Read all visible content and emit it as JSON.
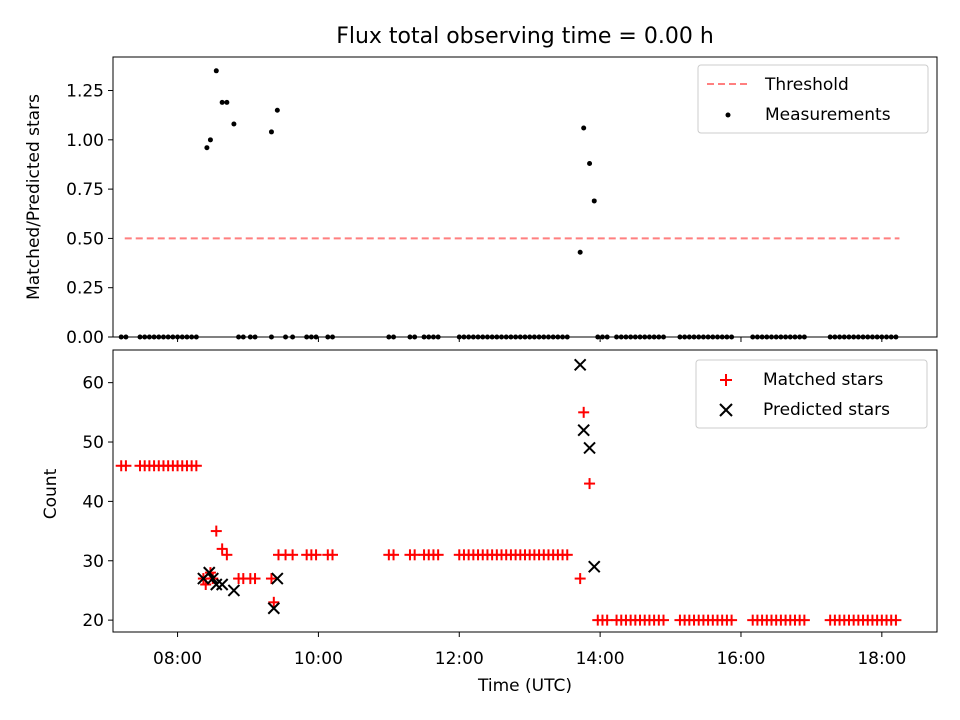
{
  "title": "Flux total observing time = 0.00 h",
  "xlabel": "Time (UTC)",
  "x_ticks": [
    "08:00",
    "10:00",
    "12:00",
    "14:00",
    "16:00",
    "18:00"
  ],
  "colors": {
    "threshold": "#ff7f7f",
    "measurements": "#000000",
    "matched": "#ff0000",
    "predicted": "#000000"
  },
  "chart_data": [
    {
      "type": "scatter",
      "ylabel": "Matched/Predicted stars",
      "xlim": [
        "07:05",
        "18:47"
      ],
      "ylim": [
        0,
        1.42
      ],
      "y_ticks": [
        "0.00",
        "0.25",
        "0.50",
        "0.75",
        "1.00",
        "1.25"
      ],
      "legend": "top-right",
      "threshold": {
        "name": "Threshold",
        "y": 0.5,
        "x_range": [
          "07:15",
          "18:15"
        ]
      },
      "series": [
        {
          "name": "Measurements",
          "points": [
            [
              "08:25",
              0.96
            ],
            [
              "08:28",
              1.0
            ],
            [
              "08:33",
              1.35
            ],
            [
              "08:38",
              1.19
            ],
            [
              "08:42",
              1.19
            ],
            [
              "08:48",
              1.08
            ],
            [
              "09:20",
              1.04
            ],
            [
              "09:25",
              1.15
            ],
            [
              "13:43",
              0.43
            ],
            [
              "13:46",
              1.06
            ],
            [
              "13:51",
              0.88
            ],
            [
              "13:55",
              0.69
            ],
            [
              "07:12",
              0
            ],
            [
              "07:16",
              0
            ],
            [
              "07:28",
              0
            ],
            [
              "07:32",
              0
            ],
            [
              "07:36",
              0
            ],
            [
              "07:40",
              0
            ],
            [
              "07:44",
              0
            ],
            [
              "07:48",
              0
            ],
            [
              "07:52",
              0
            ],
            [
              "07:56",
              0
            ],
            [
              "08:00",
              0
            ],
            [
              "08:04",
              0
            ],
            [
              "08:08",
              0
            ],
            [
              "08:12",
              0
            ],
            [
              "08:16",
              0
            ],
            [
              "08:52",
              0
            ],
            [
              "08:56",
              0
            ],
            [
              "09:02",
              0
            ],
            [
              "09:06",
              0
            ],
            [
              "09:20",
              0
            ],
            [
              "09:32",
              0
            ],
            [
              "09:38",
              0
            ],
            [
              "09:50",
              0
            ],
            [
              "09:54",
              0
            ],
            [
              "09:58",
              0
            ],
            [
              "10:08",
              0
            ],
            [
              "10:12",
              0
            ],
            [
              "11:00",
              0
            ],
            [
              "11:04",
              0
            ],
            [
              "11:18",
              0
            ],
            [
              "11:22",
              0
            ],
            [
              "11:30",
              0
            ],
            [
              "11:34",
              0
            ],
            [
              "11:38",
              0
            ],
            [
              "11:42",
              0
            ],
            [
              "12:00",
              0
            ],
            [
              "12:04",
              0
            ],
            [
              "12:08",
              0
            ],
            [
              "12:12",
              0
            ],
            [
              "12:16",
              0
            ],
            [
              "12:20",
              0
            ],
            [
              "12:24",
              0
            ],
            [
              "12:28",
              0
            ],
            [
              "12:32",
              0
            ],
            [
              "12:36",
              0
            ],
            [
              "12:40",
              0
            ],
            [
              "12:44",
              0
            ],
            [
              "12:48",
              0
            ],
            [
              "12:52",
              0
            ],
            [
              "12:56",
              0
            ],
            [
              "13:00",
              0
            ],
            [
              "13:04",
              0
            ],
            [
              "13:08",
              0
            ],
            [
              "13:12",
              0
            ],
            [
              "13:16",
              0
            ],
            [
              "13:20",
              0
            ],
            [
              "13:24",
              0
            ],
            [
              "13:28",
              0
            ],
            [
              "13:32",
              0
            ],
            [
              "13:58",
              0
            ],
            [
              "14:02",
              0
            ],
            [
              "14:06",
              0
            ],
            [
              "14:14",
              0
            ],
            [
              "14:18",
              0
            ],
            [
              "14:22",
              0
            ],
            [
              "14:26",
              0
            ],
            [
              "14:30",
              0
            ],
            [
              "14:34",
              0
            ],
            [
              "14:38",
              0
            ],
            [
              "14:42",
              0
            ],
            [
              "14:46",
              0
            ],
            [
              "14:50",
              0
            ],
            [
              "14:54",
              0
            ],
            [
              "15:08",
              0
            ],
            [
              "15:12",
              0
            ],
            [
              "15:16",
              0
            ],
            [
              "15:20",
              0
            ],
            [
              "15:24",
              0
            ],
            [
              "15:28",
              0
            ],
            [
              "15:32",
              0
            ],
            [
              "15:36",
              0
            ],
            [
              "15:40",
              0
            ],
            [
              "15:44",
              0
            ],
            [
              "15:48",
              0
            ],
            [
              "15:52",
              0
            ],
            [
              "16:10",
              0
            ],
            [
              "16:14",
              0
            ],
            [
              "16:18",
              0
            ],
            [
              "16:22",
              0
            ],
            [
              "16:26",
              0
            ],
            [
              "16:30",
              0
            ],
            [
              "16:34",
              0
            ],
            [
              "16:38",
              0
            ],
            [
              "16:42",
              0
            ],
            [
              "16:46",
              0
            ],
            [
              "16:50",
              0
            ],
            [
              "16:54",
              0
            ],
            [
              "17:16",
              0
            ],
            [
              "17:20",
              0
            ],
            [
              "17:24",
              0
            ],
            [
              "17:28",
              0
            ],
            [
              "17:32",
              0
            ],
            [
              "17:36",
              0
            ],
            [
              "17:40",
              0
            ],
            [
              "17:44",
              0
            ],
            [
              "17:48",
              0
            ],
            [
              "17:52",
              0
            ],
            [
              "17:56",
              0
            ],
            [
              "18:00",
              0
            ],
            [
              "18:04",
              0
            ],
            [
              "18:08",
              0
            ],
            [
              "18:12",
              0
            ]
          ]
        }
      ]
    },
    {
      "type": "scatter",
      "ylabel": "Count",
      "xlim": [
        "07:05",
        "18:47"
      ],
      "ylim": [
        18,
        65.5
      ],
      "y_ticks": [
        "20",
        "30",
        "40",
        "50",
        "60"
      ],
      "legend": "top-right",
      "series": [
        {
          "name": "Matched stars",
          "marker": "+",
          "points": [
            [
              "07:12",
              46
            ],
            [
              "07:16",
              46
            ],
            [
              "07:28",
              46
            ],
            [
              "07:32",
              46
            ],
            [
              "07:36",
              46
            ],
            [
              "07:40",
              46
            ],
            [
              "07:44",
              46
            ],
            [
              "07:48",
              46
            ],
            [
              "07:52",
              46
            ],
            [
              "07:56",
              46
            ],
            [
              "08:00",
              46
            ],
            [
              "08:04",
              46
            ],
            [
              "08:08",
              46
            ],
            [
              "08:12",
              46
            ],
            [
              "08:16",
              46
            ],
            [
              "08:22",
              27
            ],
            [
              "08:24",
              26
            ],
            [
              "08:28",
              28
            ],
            [
              "08:30",
              27
            ],
            [
              "08:33",
              35
            ],
            [
              "08:38",
              32
            ],
            [
              "08:42",
              31
            ],
            [
              "08:52",
              27
            ],
            [
              "08:56",
              27
            ],
            [
              "09:02",
              27
            ],
            [
              "09:06",
              27
            ],
            [
              "09:20",
              27
            ],
            [
              "09:22",
              23
            ],
            [
              "09:26",
              31
            ],
            [
              "09:32",
              31
            ],
            [
              "09:38",
              31
            ],
            [
              "09:50",
              31
            ],
            [
              "09:54",
              31
            ],
            [
              "09:58",
              31
            ],
            [
              "10:08",
              31
            ],
            [
              "10:12",
              31
            ],
            [
              "11:00",
              31
            ],
            [
              "11:04",
              31
            ],
            [
              "11:18",
              31
            ],
            [
              "11:22",
              31
            ],
            [
              "11:30",
              31
            ],
            [
              "11:34",
              31
            ],
            [
              "11:38",
              31
            ],
            [
              "11:42",
              31
            ],
            [
              "12:00",
              31
            ],
            [
              "12:04",
              31
            ],
            [
              "12:08",
              31
            ],
            [
              "12:12",
              31
            ],
            [
              "12:16",
              31
            ],
            [
              "12:20",
              31
            ],
            [
              "12:24",
              31
            ],
            [
              "12:28",
              31
            ],
            [
              "12:32",
              31
            ],
            [
              "12:36",
              31
            ],
            [
              "12:40",
              31
            ],
            [
              "12:44",
              31
            ],
            [
              "12:48",
              31
            ],
            [
              "12:52",
              31
            ],
            [
              "12:56",
              31
            ],
            [
              "13:00",
              31
            ],
            [
              "13:04",
              31
            ],
            [
              "13:08",
              31
            ],
            [
              "13:12",
              31
            ],
            [
              "13:16",
              31
            ],
            [
              "13:20",
              31
            ],
            [
              "13:24",
              31
            ],
            [
              "13:28",
              31
            ],
            [
              "13:32",
              31
            ],
            [
              "13:43",
              27
            ],
            [
              "13:46",
              55
            ],
            [
              "13:51",
              43
            ],
            [
              "13:58",
              20
            ],
            [
              "14:02",
              20
            ],
            [
              "14:06",
              20
            ],
            [
              "14:14",
              20
            ],
            [
              "14:18",
              20
            ],
            [
              "14:22",
              20
            ],
            [
              "14:26",
              20
            ],
            [
              "14:30",
              20
            ],
            [
              "14:34",
              20
            ],
            [
              "14:38",
              20
            ],
            [
              "14:42",
              20
            ],
            [
              "14:46",
              20
            ],
            [
              "14:50",
              20
            ],
            [
              "14:54",
              20
            ],
            [
              "15:08",
              20
            ],
            [
              "15:12",
              20
            ],
            [
              "15:16",
              20
            ],
            [
              "15:20",
              20
            ],
            [
              "15:24",
              20
            ],
            [
              "15:28",
              20
            ],
            [
              "15:32",
              20
            ],
            [
              "15:36",
              20
            ],
            [
              "15:40",
              20
            ],
            [
              "15:44",
              20
            ],
            [
              "15:48",
              20
            ],
            [
              "15:52",
              20
            ],
            [
              "16:10",
              20
            ],
            [
              "16:14",
              20
            ],
            [
              "16:18",
              20
            ],
            [
              "16:22",
              20
            ],
            [
              "16:26",
              20
            ],
            [
              "16:30",
              20
            ],
            [
              "16:34",
              20
            ],
            [
              "16:38",
              20
            ],
            [
              "16:42",
              20
            ],
            [
              "16:46",
              20
            ],
            [
              "16:50",
              20
            ],
            [
              "16:54",
              20
            ],
            [
              "17:16",
              20
            ],
            [
              "17:20",
              20
            ],
            [
              "17:24",
              20
            ],
            [
              "17:28",
              20
            ],
            [
              "17:32",
              20
            ],
            [
              "17:36",
              20
            ],
            [
              "17:40",
              20
            ],
            [
              "17:44",
              20
            ],
            [
              "17:48",
              20
            ],
            [
              "17:52",
              20
            ],
            [
              "17:56",
              20
            ],
            [
              "18:00",
              20
            ],
            [
              "18:04",
              20
            ],
            [
              "18:08",
              20
            ],
            [
              "18:12",
              20
            ]
          ]
        },
        {
          "name": "Predicted stars",
          "marker": "x",
          "points": [
            [
              "08:22",
              27
            ],
            [
              "08:27",
              28
            ],
            [
              "08:30",
              27
            ],
            [
              "08:33",
              26
            ],
            [
              "08:38",
              26
            ],
            [
              "08:48",
              25
            ],
            [
              "09:22",
              22
            ],
            [
              "09:25",
              27
            ],
            [
              "13:43",
              63
            ],
            [
              "13:46",
              52
            ],
            [
              "13:51",
              49
            ],
            [
              "13:55",
              29
            ]
          ]
        }
      ]
    }
  ]
}
